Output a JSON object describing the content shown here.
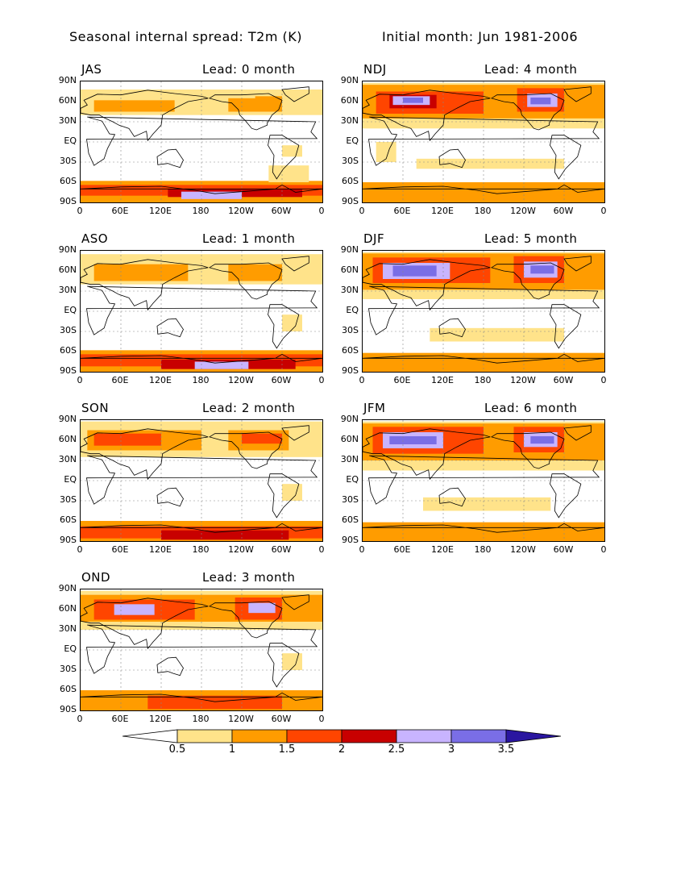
{
  "header": {
    "title": "Seasonal internal spread: T2m (K)",
    "subtitle": "Initial month: Jun 1981-2006"
  },
  "panels": [
    {
      "season": "JAS",
      "lead": "Lead: 0 month"
    },
    {
      "season": "NDJ",
      "lead": "Lead: 4 month"
    },
    {
      "season": "ASO",
      "lead": "Lead: 1 month"
    },
    {
      "season": "DJF",
      "lead": "Lead: 5 month"
    },
    {
      "season": "SON",
      "lead": "Lead: 2 month"
    },
    {
      "season": "JFM",
      "lead": "Lead: 6 month"
    },
    {
      "season": "OND",
      "lead": "Lead: 3 month"
    }
  ],
  "axes": {
    "lat_labels": [
      "90N",
      "60N",
      "30N",
      "EQ",
      "30S",
      "60S",
      "90S"
    ],
    "lon_labels": [
      "0",
      "60E",
      "120E",
      "180",
      "120W",
      "60W",
      "0"
    ]
  },
  "colorbar": {
    "levels": [
      "0.5",
      "1",
      "1.5",
      "2",
      "2.5",
      "3",
      "3.5"
    ],
    "colors": [
      "#ffffff",
      "#ffe38a",
      "#ff9c00",
      "#ff4500",
      "#c80000",
      "#c8b4ff",
      "#7a6ee6",
      "#2a16a0"
    ]
  }
}
